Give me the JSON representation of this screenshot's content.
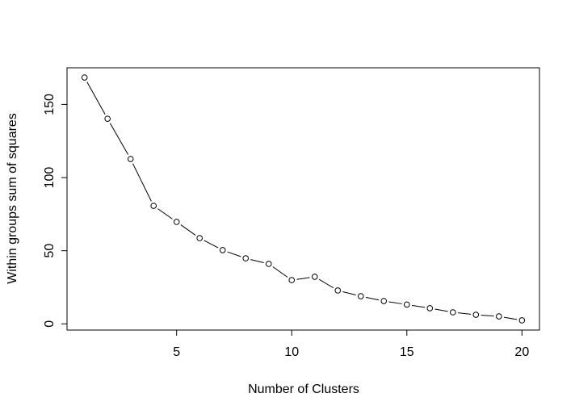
{
  "chart_data": {
    "type": "line",
    "title": "",
    "xlabel": "Number of Clusters",
    "ylabel": "Within groups sum of squares",
    "x": [
      1,
      2,
      3,
      4,
      5,
      6,
      7,
      8,
      9,
      10,
      11,
      12,
      13,
      14,
      15,
      16,
      17,
      18,
      19,
      20
    ],
    "series": [
      {
        "values": [
          168.4,
          140.2,
          112.7,
          80.7,
          69.7,
          58.6,
          50.4,
          44.8,
          41.0,
          29.9,
          32.2,
          22.8,
          18.9,
          15.6,
          13.2,
          10.7,
          7.9,
          6.2,
          5.1,
          2.4
        ]
      }
    ],
    "xticks": [
      5,
      10,
      15,
      20
    ],
    "yticks": [
      0,
      50,
      100,
      150
    ],
    "xlim": [
      0.24,
      20.76
    ],
    "ylim": [
      -4.24,
      175.04
    ],
    "grid": false,
    "marker": "open-circle",
    "line_style": "both",
    "color": "#000000"
  }
}
